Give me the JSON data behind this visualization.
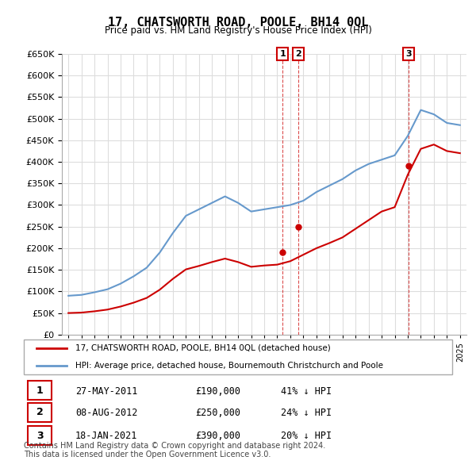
{
  "title": "17, CHATSWORTH ROAD, POOLE, BH14 0QL",
  "subtitle": "Price paid vs. HM Land Registry's House Price Index (HPI)",
  "hpi_color": "#6699cc",
  "price_color": "#cc0000",
  "annotation_color": "#cc0000",
  "background_color": "#ffffff",
  "grid_color": "#dddddd",
  "ylim": [
    0,
    650000
  ],
  "yticks": [
    0,
    50000,
    100000,
    150000,
    200000,
    250000,
    300000,
    350000,
    400000,
    450000,
    500000,
    550000,
    600000,
    650000
  ],
  "xlim_start": 1994.5,
  "xlim_end": 2025.5,
  "transactions": [
    {
      "label": "1",
      "date": "27-MAY-2011",
      "price": 190000,
      "hpi_pct": "41% ↓ HPI",
      "x": 2011.41
    },
    {
      "label": "2",
      "date": "08-AUG-2012",
      "price": 250000,
      "hpi_pct": "24% ↓ HPI",
      "x": 2012.6
    },
    {
      "label": "3",
      "date": "18-JAN-2021",
      "price": 390000,
      "hpi_pct": "20% ↓ HPI",
      "x": 2021.05
    }
  ],
  "legend_line1": "17, CHATSWORTH ROAD, POOLE, BH14 0QL (detached house)",
  "legend_line2": "HPI: Average price, detached house, Bournemouth Christchurch and Poole",
  "footer": "Contains HM Land Registry data © Crown copyright and database right 2024.\nThis data is licensed under the Open Government Licence v3.0."
}
